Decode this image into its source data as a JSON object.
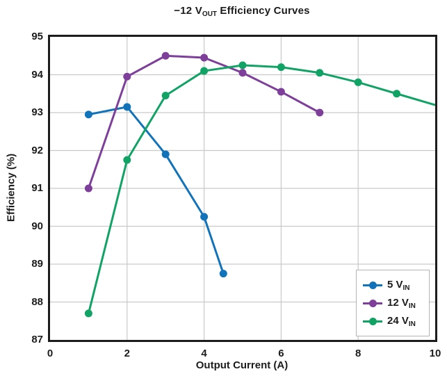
{
  "figure": {
    "title_parts": {
      "prefix": "−12 V",
      "sub": "OUT",
      "suffix": " Efficiency Curves"
    },
    "colors": {
      "text": "#1c1c1c",
      "plot_border": "#1c1c1c",
      "gridline": "#c9c9c9",
      "legend_border": "#b3b3b3",
      "background": "#ffffff",
      "series_blue": "#1173b9",
      "series_purple": "#7e3f9a",
      "series_green": "#11a365"
    }
  },
  "chart_data": {
    "type": "line",
    "title": "−12 VOUT Efficiency Curves",
    "xlabel": "Output Current (A)",
    "ylabel": "Efficiency (%)",
    "xlim": [
      0,
      10
    ],
    "ylim": [
      87,
      95
    ],
    "x_ticks": [
      0,
      2,
      4,
      6,
      8,
      10
    ],
    "y_ticks": [
      87,
      88,
      89,
      90,
      91,
      92,
      93,
      94,
      95
    ],
    "grid": true,
    "legend_position": "lower right",
    "series": [
      {
        "name": "5 VIN",
        "label": "5 V",
        "label_sub": "IN",
        "color": "#1173b9",
        "points": [
          [
            1,
            92.95
          ],
          [
            2,
            93.15
          ],
          [
            3,
            91.9
          ],
          [
            4,
            90.25
          ],
          [
            4.5,
            88.75
          ]
        ],
        "last_marker_hidden": false
      },
      {
        "name": "12 VIN",
        "label": "12 V",
        "label_sub": "IN",
        "color": "#7e3f9a",
        "points": [
          [
            1,
            91.0
          ],
          [
            2,
            93.95
          ],
          [
            3,
            94.5
          ],
          [
            4,
            94.45
          ],
          [
            5,
            94.05
          ],
          [
            6,
            93.55
          ],
          [
            7,
            93.0
          ]
        ],
        "last_marker_hidden": false
      },
      {
        "name": "24 VIN",
        "label": "24 V",
        "label_sub": "IN",
        "color": "#11a365",
        "points": [
          [
            1,
            87.7
          ],
          [
            2,
            91.75
          ],
          [
            3,
            93.45
          ],
          [
            4,
            94.1
          ],
          [
            5,
            94.25
          ],
          [
            6,
            94.2
          ],
          [
            7,
            94.05
          ],
          [
            8,
            93.8
          ],
          [
            9,
            93.5
          ],
          [
            10,
            93.2
          ]
        ],
        "last_marker_hidden": true
      }
    ]
  }
}
